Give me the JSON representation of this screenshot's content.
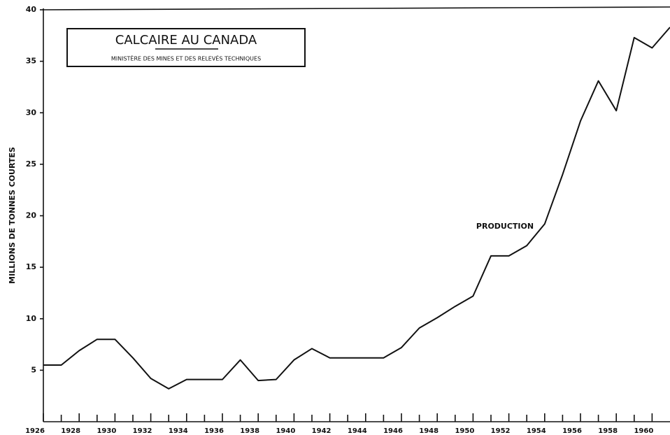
{
  "chart_data": {
    "type": "line",
    "title": "CALCAIRE AU CANADA",
    "subtitle": "MINISTÈRE DES MINES ET DES RELEVÉS TECHNIQUES",
    "y_label": "MILLIONS DE TONNES COURTES",
    "annotation": "PRODUCTION",
    "x": [
      1926,
      1927,
      1928,
      1929,
      1930,
      1931,
      1932,
      1933,
      1934,
      1935,
      1936,
      1937,
      1938,
      1939,
      1940,
      1941,
      1942,
      1943,
      1944,
      1945,
      1946,
      1947,
      1948,
      1949,
      1950,
      1951,
      1952,
      1953,
      1954,
      1955,
      1956,
      1957,
      1958,
      1959,
      1960,
      1961
    ],
    "series": [
      {
        "name": "PRODUCTION",
        "color": "#111111",
        "values": [
          5.5,
          5.5,
          6.9,
          8.0,
          8.0,
          6.2,
          4.2,
          3.2,
          4.1,
          4.1,
          4.1,
          6.0,
          4.0,
          4.1,
          6.0,
          7.1,
          6.2,
          6.2,
          6.2,
          6.2,
          7.2,
          9.1,
          10.1,
          11.2,
          12.2,
          16.1,
          16.1,
          17.1,
          19.2,
          24.0,
          29.2,
          33.1,
          30.2,
          37.3,
          36.3,
          38.3
        ]
      }
    ],
    "xlim": [
      1926,
      1961
    ],
    "ylim": [
      0,
      40
    ],
    "xticks": [
      1926,
      1928,
      1930,
      1932,
      1934,
      1936,
      1938,
      1940,
      1942,
      1944,
      1946,
      1948,
      1950,
      1952,
      1954,
      1956,
      1958,
      1960
    ],
    "xminor_ticks": [
      1927,
      1929,
      1931,
      1933,
      1935,
      1937,
      1939,
      1941,
      1943,
      1945,
      1947,
      1949,
      1951,
      1953,
      1955,
      1957,
      1959
    ],
    "yticks": [
      5,
      10,
      15,
      20,
      25,
      30,
      35,
      40
    ],
    "grid": false
  }
}
